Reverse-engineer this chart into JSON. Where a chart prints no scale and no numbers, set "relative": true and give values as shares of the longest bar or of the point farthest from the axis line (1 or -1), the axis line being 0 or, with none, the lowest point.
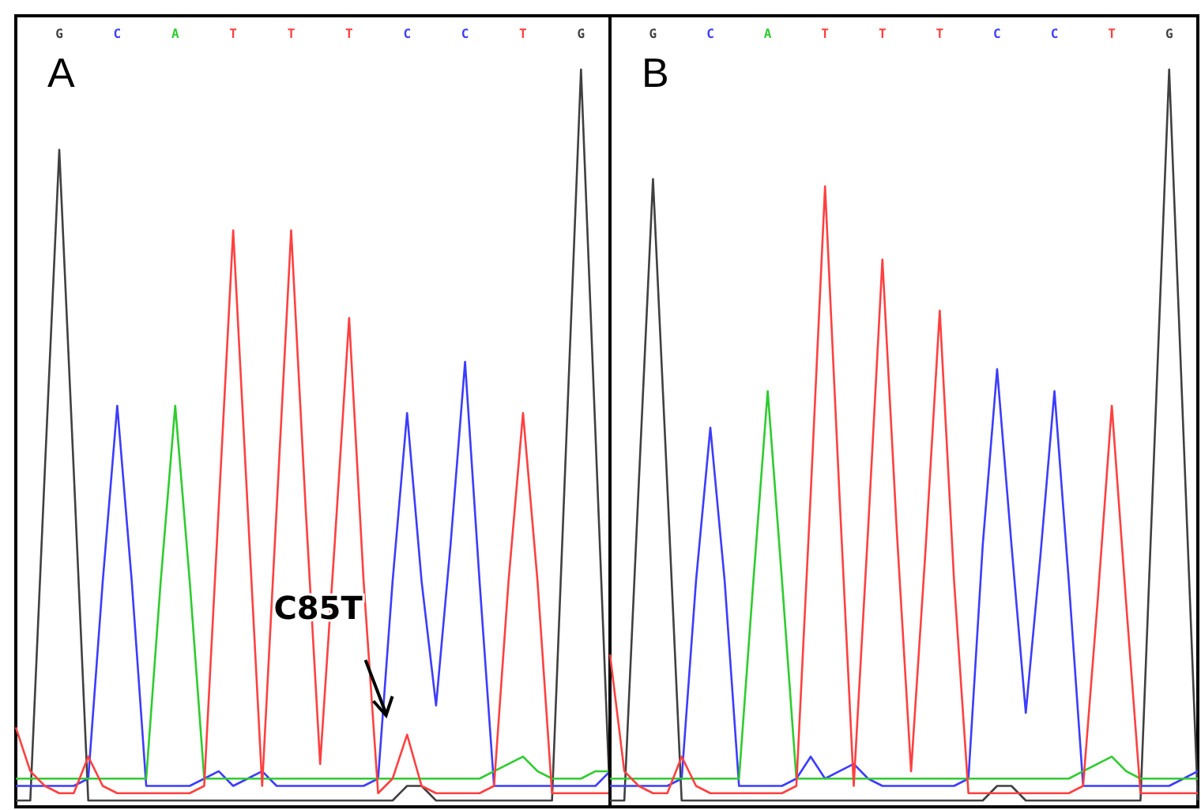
{
  "chart_data": [
    {
      "type": "line",
      "title": "A",
      "relative": true,
      "categories": [
        null,
        null,
        null,
        "G",
        null,
        null,
        null,
        "C",
        null,
        null,
        null,
        "A",
        null,
        null,
        null,
        "T",
        null,
        null,
        null,
        "T",
        null,
        null,
        null,
        "T",
        null,
        null,
        null,
        "C",
        null,
        null,
        null,
        "C",
        null,
        null,
        null,
        "T",
        null,
        null,
        null,
        "G",
        null,
        null
      ],
      "grid": false,
      "marker": "none",
      "line_style": "solid",
      "annotations": [
        "C85T"
      ],
      "series": [
        {
          "color": "#404040",
          "values": [
            0,
            0,
            0.45,
            0.89,
            0.45,
            0,
            0,
            0,
            0,
            0,
            0,
            0,
            0,
            0,
            0,
            0,
            0,
            0,
            0,
            0,
            0,
            0,
            0,
            0,
            0,
            0,
            0,
            0.02,
            0.02,
            0,
            0,
            0,
            0,
            0,
            0,
            0,
            0,
            0,
            0.5,
            1,
            0.5,
            0
          ]
        },
        {
          "color": "#3c3cff",
          "values": [
            0.02,
            0.02,
            0.02,
            0.02,
            0.02,
            0.03,
            0.3,
            0.54,
            0.3,
            0.02,
            0.02,
            0.02,
            0.02,
            0.03,
            0.04,
            0.02,
            0.03,
            0.04,
            0.02,
            0.02,
            0.02,
            0.02,
            0.02,
            0.02,
            0.02,
            0.03,
            0.3,
            0.53,
            0.3,
            0.13,
            0.35,
            0.6,
            0.3,
            0.02,
            0.02,
            0.02,
            0.02,
            0.02,
            0.02,
            0.02,
            0.02,
            0.04
          ]
        },
        {
          "color": "#2ecc2e",
          "values": [
            0.03,
            0.03,
            0.03,
            0.03,
            0.03,
            0.03,
            0.03,
            0.03,
            0.03,
            0.03,
            0.3,
            0.54,
            0.3,
            0.03,
            0.03,
            0.03,
            0.03,
            0.03,
            0.03,
            0.03,
            0.03,
            0.03,
            0.03,
            0.03,
            0.03,
            0.03,
            0.03,
            0.03,
            0.03,
            0.03,
            0.03,
            0.03,
            0.03,
            0.04,
            0.05,
            0.06,
            0.04,
            0.03,
            0.03,
            0.03,
            0.04,
            0.04
          ]
        },
        {
          "color": "#ff4040",
          "values": [
            0.1,
            0.04,
            0.02,
            0.01,
            0.01,
            0.06,
            0.02,
            0.01,
            0.01,
            0.01,
            0.01,
            0.01,
            0.01,
            0.02,
            0.4,
            0.78,
            0.4,
            0.02,
            0.4,
            0.78,
            0.4,
            0.05,
            0.35,
            0.66,
            0.3,
            0.01,
            0.03,
            0.09,
            0.02,
            0.01,
            0.01,
            0.01,
            0.01,
            0.02,
            0.3,
            0.53,
            0.3,
            0.01,
            0.01,
            0.01,
            0.01,
            0.01
          ]
        }
      ]
    },
    {
      "type": "line",
      "title": "B",
      "relative": true,
      "categories": [
        null,
        null,
        null,
        "G",
        null,
        null,
        null,
        "C",
        null,
        null,
        null,
        "A",
        null,
        null,
        null,
        "T",
        null,
        null,
        null,
        "T",
        null,
        null,
        null,
        "T",
        null,
        null,
        null,
        "C",
        null,
        null,
        null,
        "C",
        null,
        null,
        null,
        "T",
        null,
        null,
        null,
        "G",
        null,
        null
      ],
      "grid": false,
      "marker": "none",
      "line_style": "solid",
      "series": [
        {
          "color": "#404040",
          "values": [
            0,
            0,
            0.43,
            0.85,
            0.43,
            0,
            0,
            0,
            0,
            0,
            0,
            0,
            0,
            0,
            0,
            0,
            0,
            0,
            0,
            0,
            0,
            0,
            0,
            0,
            0,
            0,
            0,
            0.02,
            0.02,
            0,
            0,
            0,
            0,
            0,
            0,
            0,
            0,
            0,
            0.5,
            1,
            0.5,
            0
          ]
        },
        {
          "color": "#3c3cff",
          "values": [
            0.02,
            0.02,
            0.02,
            0.02,
            0.02,
            0.03,
            0.3,
            0.51,
            0.3,
            0.02,
            0.02,
            0.02,
            0.02,
            0.03,
            0.06,
            0.03,
            0.04,
            0.05,
            0.03,
            0.02,
            0.02,
            0.02,
            0.02,
            0.02,
            0.02,
            0.03,
            0.35,
            0.59,
            0.35,
            0.12,
            0.33,
            0.56,
            0.3,
            0.02,
            0.02,
            0.02,
            0.02,
            0.02,
            0.02,
            0.02,
            0.03,
            0.04
          ]
        },
        {
          "color": "#2ecc2e",
          "values": [
            0.03,
            0.03,
            0.03,
            0.03,
            0.03,
            0.03,
            0.03,
            0.03,
            0.03,
            0.03,
            0.3,
            0.56,
            0.3,
            0.03,
            0.03,
            0.03,
            0.03,
            0.03,
            0.03,
            0.03,
            0.03,
            0.03,
            0.03,
            0.03,
            0.03,
            0.03,
            0.03,
            0.03,
            0.03,
            0.03,
            0.03,
            0.03,
            0.03,
            0.04,
            0.05,
            0.06,
            0.04,
            0.03,
            0.03,
            0.03,
            0.03,
            0.03
          ]
        },
        {
          "color": "#ff4040",
          "values": [
            0.2,
            0.04,
            0.02,
            0.01,
            0.01,
            0.06,
            0.02,
            0.01,
            0.01,
            0.01,
            0.01,
            0.01,
            0.01,
            0.02,
            0.42,
            0.84,
            0.42,
            0.02,
            0.37,
            0.74,
            0.37,
            0.04,
            0.34,
            0.67,
            0.3,
            0.01,
            0.01,
            0.01,
            0.01,
            0.01,
            0.01,
            0.01,
            0.01,
            0.02,
            0.27,
            0.54,
            0.27,
            0.01,
            0.01,
            0.01,
            0.01,
            0.01
          ]
        }
      ]
    }
  ]
}
